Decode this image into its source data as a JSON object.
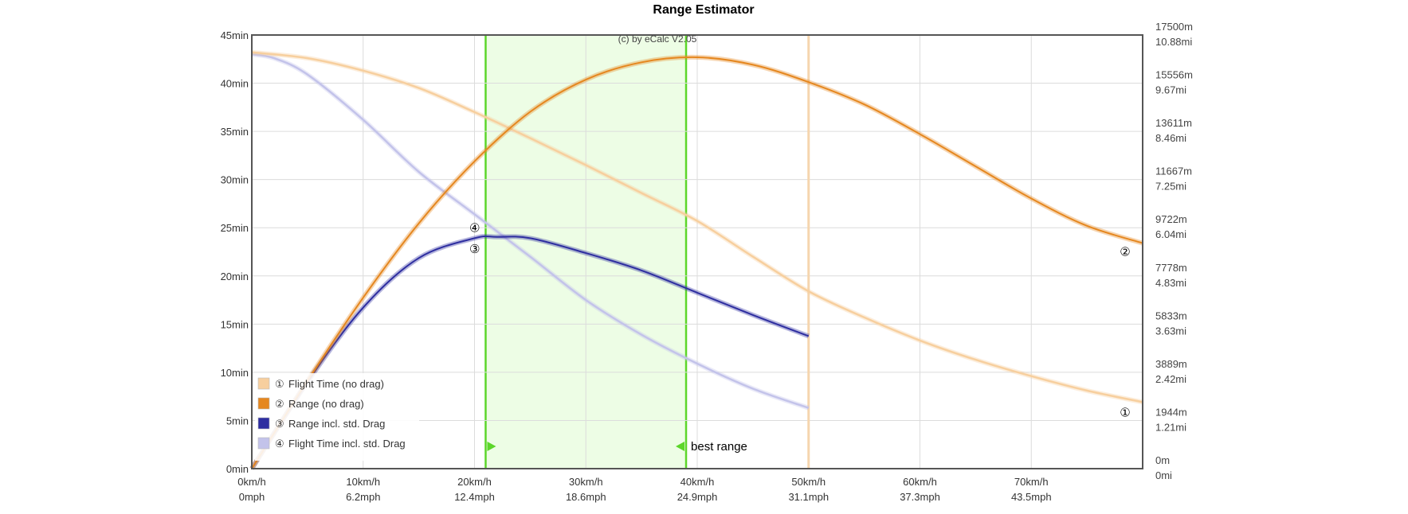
{
  "chart_data": {
    "type": "line",
    "title": "Range Estimator",
    "watermark": "(c) by eCalc  V2.05",
    "x_ticks": [
      {
        "value": 0,
        "label": "0km/h",
        "label2": "0mph"
      },
      {
        "value": 10,
        "label": "10km/h",
        "label2": "6.2mph"
      },
      {
        "value": 20,
        "label": "20km/h",
        "label2": "12.4mph"
      },
      {
        "value": 30,
        "label": "30km/h",
        "label2": "18.6mph"
      },
      {
        "value": 40,
        "label": "40km/h",
        "label2": "24.9mph"
      },
      {
        "value": 50,
        "label": "50km/h",
        "label2": "31.1mph"
      },
      {
        "value": 60,
        "label": "60km/h",
        "label2": "37.3mph"
      },
      {
        "value": 70,
        "label": "70km/h",
        "label2": "43.5mph"
      }
    ],
    "xlim": [
      0,
      80
    ],
    "y_ticks": [
      {
        "value": 0,
        "label": "0min"
      },
      {
        "value": 5,
        "label": "5min"
      },
      {
        "value": 10,
        "label": "10min"
      },
      {
        "value": 15,
        "label": "15min"
      },
      {
        "value": 20,
        "label": "20min"
      },
      {
        "value": 25,
        "label": "25min"
      },
      {
        "value": 30,
        "label": "30min"
      },
      {
        "value": 35,
        "label": "35min"
      },
      {
        "value": 40,
        "label": "40min"
      },
      {
        "value": 45,
        "label": "45min"
      }
    ],
    "ylim": [
      0,
      45
    ],
    "y2_ticks": [
      {
        "value": 0,
        "label": "0m",
        "label2": "0mi"
      },
      {
        "value": 1944,
        "label": "1944m",
        "label2": "1.21mi"
      },
      {
        "value": 3889,
        "label": "3889m",
        "label2": "2.42mi"
      },
      {
        "value": 5833,
        "label": "5833m",
        "label2": "3.63mi"
      },
      {
        "value": 7778,
        "label": "7778m",
        "label2": "4.83mi"
      },
      {
        "value": 9722,
        "label": "9722m",
        "label2": "6.04mi"
      },
      {
        "value": 11667,
        "label": "11667m",
        "label2": "7.25mi"
      },
      {
        "value": 13611,
        "label": "13611m",
        "label2": "8.46mi"
      },
      {
        "value": 15556,
        "label": "15556m",
        "label2": "9.67mi"
      },
      {
        "value": 17500,
        "label": "17500m",
        "label2": "10.88mi"
      }
    ],
    "y2lim": [
      0,
      17500
    ],
    "grid": true,
    "legend_position": "bottom-left",
    "band": {
      "from": 21,
      "to": 39,
      "color": "#edfde5",
      "edge_color": "#5cd62a",
      "label": "best range"
    },
    "limit_line": {
      "x": 50,
      "color": "#f5d5ae"
    },
    "series": [
      {
        "name": "Flight Time (no drag)",
        "marker": "①",
        "color": "#f7cf9e",
        "axis": "left",
        "x": [
          0,
          5,
          10,
          15,
          20,
          25,
          30,
          35,
          40,
          45,
          50,
          55,
          60,
          65,
          70,
          75,
          80
        ],
        "y": [
          43.2,
          42.6,
          41.3,
          39.5,
          37.0,
          34.3,
          31.5,
          28.6,
          25.7,
          22.0,
          18.4,
          15.7,
          13.3,
          11.3,
          9.6,
          8.1,
          6.9
        ]
      },
      {
        "name": "Range (no drag)",
        "marker": "②",
        "color": "#e5871f",
        "axis": "right",
        "x": [
          0,
          5,
          10,
          15,
          20,
          25,
          30,
          35,
          40,
          45,
          50,
          55,
          60,
          65,
          70,
          75,
          80
        ],
        "y": [
          0,
          3550,
          6900,
          9900,
          12400,
          14400,
          15700,
          16400,
          16600,
          16300,
          15600,
          14700,
          13500,
          12200,
          10900,
          9800,
          9100
        ]
      },
      {
        "name": "Range incl. std. Drag",
        "marker": "③",
        "color": "#2e2ea0",
        "axis": "right",
        "x": [
          0,
          5,
          10,
          15,
          20,
          22,
          25,
          30,
          35,
          40,
          45,
          50
        ],
        "y": [
          0,
          3500,
          6500,
          8500,
          9300,
          9350,
          9300,
          8700,
          8000,
          7100,
          6200,
          5350
        ]
      },
      {
        "name": "Flight Time incl. std. Drag",
        "marker": "④",
        "color": "#c3c3ea",
        "axis": "left",
        "x": [
          0,
          2,
          5,
          10,
          15,
          20,
          25,
          30,
          35,
          40,
          45,
          50
        ],
        "y": [
          43.0,
          42.6,
          40.9,
          36.2,
          30.8,
          26.4,
          22.0,
          17.5,
          13.9,
          10.9,
          8.3,
          6.3
        ]
      }
    ]
  }
}
